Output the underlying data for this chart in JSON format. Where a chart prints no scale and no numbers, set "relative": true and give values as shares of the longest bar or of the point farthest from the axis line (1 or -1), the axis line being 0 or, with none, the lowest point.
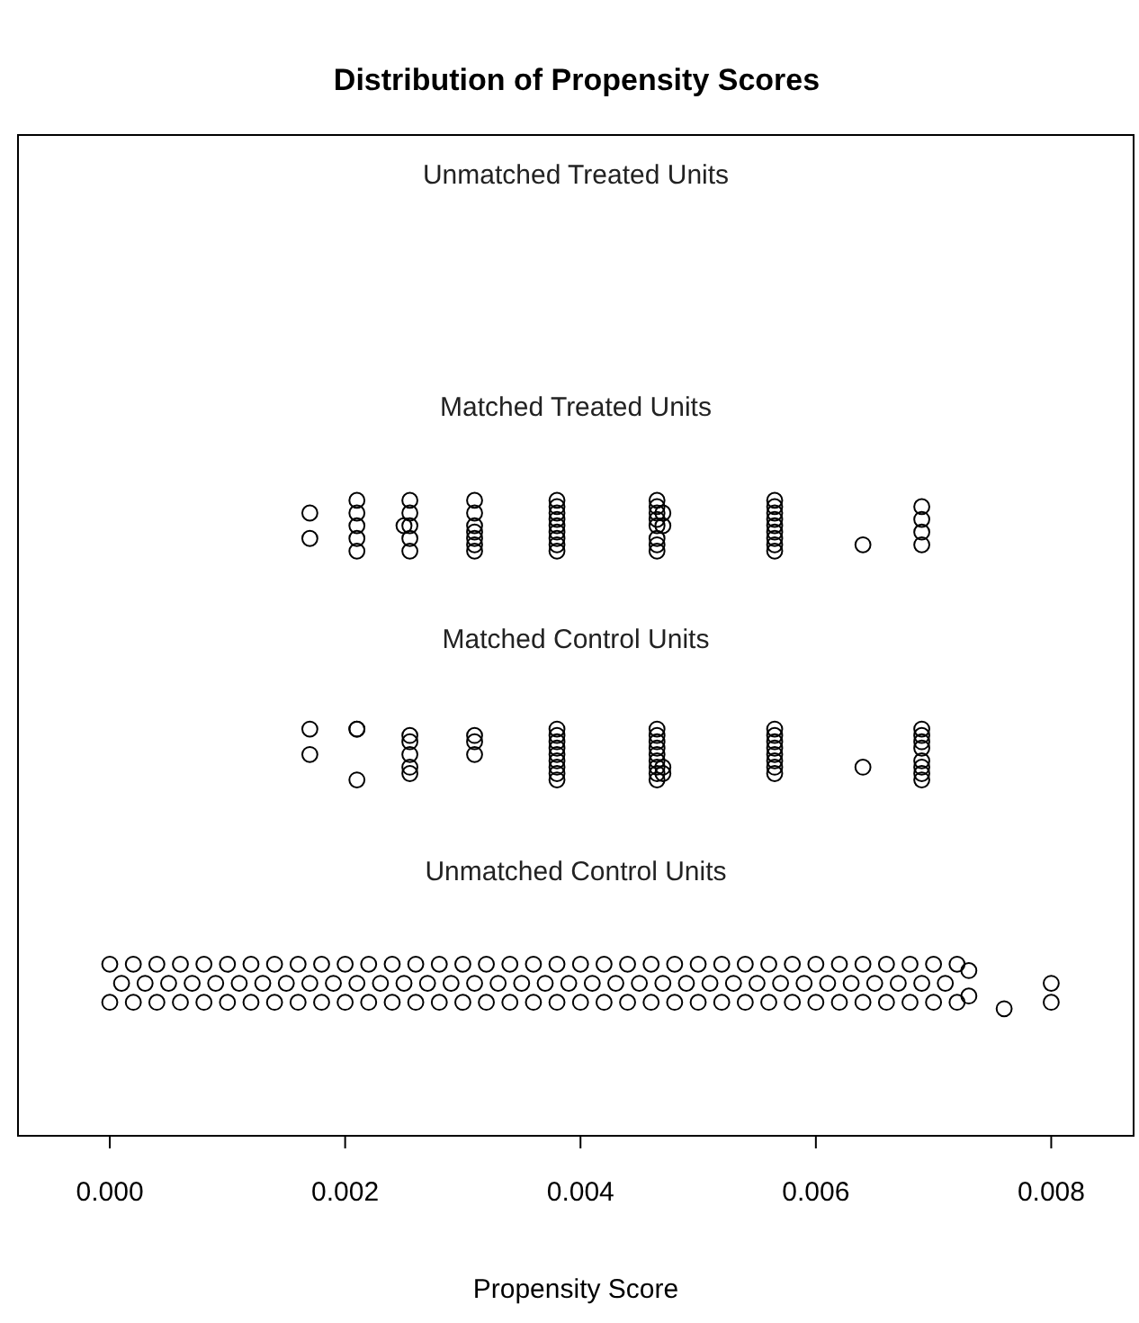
{
  "chart_data": {
    "type": "scatter",
    "title": "Distribution of Propensity Scores",
    "xlabel": "Propensity Score",
    "relative": true,
    "marker": "circle",
    "xlim": [
      -0.00078,
      0.0087
    ],
    "xticks": [
      {
        "value": 0,
        "label": "0.000"
      },
      {
        "value": 0.002,
        "label": "0.002"
      },
      {
        "value": 0.004,
        "label": "0.004"
      },
      {
        "value": 0.006,
        "label": "0.006"
      },
      {
        "value": 0.008,
        "label": "0.008"
      }
    ],
    "annotations": [
      "Unmatched Treated Units",
      "Matched Treated Units",
      "Matched Control Units",
      "Unmatched Control Units"
    ],
    "series": [
      {
        "color": "#000000",
        "x": [
          0.0017,
          0.0017,
          0.0021,
          0.0021,
          0.0021,
          0.0021,
          0.0021,
          0.00255,
          0.00255,
          0.00255,
          0.00255,
          0.00255,
          0.0025,
          0.0031,
          0.0031,
          0.0031,
          0.0031,
          0.0031,
          0.0031,
          0.0031,
          0.0038,
          0.0038,
          0.0038,
          0.0038,
          0.0038,
          0.0038,
          0.0038,
          0.0038,
          0.0038,
          0.00465,
          0.00465,
          0.00465,
          0.00465,
          0.00465,
          0.00465,
          0.00465,
          0.00465,
          0.0047,
          0.0047,
          0.00565,
          0.00565,
          0.00565,
          0.00565,
          0.00565,
          0.00565,
          0.00565,
          0.00565,
          0.00565,
          0.0064,
          0.0069,
          0.0069,
          0.0069,
          0.0069
        ],
        "values": [
          0.98,
          0.94,
          1.0,
          0.98,
          0.96,
          0.94,
          0.92,
          1.0,
          0.98,
          0.96,
          0.94,
          0.92,
          0.96,
          1.0,
          0.98,
          0.96,
          0.95,
          0.94,
          0.93,
          0.92,
          1.0,
          0.99,
          0.98,
          0.97,
          0.96,
          0.95,
          0.94,
          0.93,
          0.92,
          1.0,
          0.99,
          0.98,
          0.97,
          0.96,
          0.94,
          0.93,
          0.92,
          0.98,
          0.96,
          1.0,
          0.99,
          0.98,
          0.97,
          0.96,
          0.95,
          0.94,
          0.93,
          0.92,
          0.93,
          0.99,
          0.97,
          0.95,
          0.93
        ]
      },
      {
        "color": "#000000",
        "x": [
          0.0017,
          0.0017,
          0.0021,
          0.0021,
          0.0021,
          0.00255,
          0.00255,
          0.00255,
          0.00255,
          0.00255,
          0.0031,
          0.0031,
          0.0031,
          0.0038,
          0.0038,
          0.0038,
          0.0038,
          0.0038,
          0.0038,
          0.0038,
          0.0038,
          0.0038,
          0.00465,
          0.00465,
          0.00465,
          0.00465,
          0.00465,
          0.00465,
          0.00465,
          0.00465,
          0.00465,
          0.0047,
          0.0047,
          0.00565,
          0.00565,
          0.00565,
          0.00565,
          0.00565,
          0.00565,
          0.00565,
          0.00565,
          0.0064,
          0.0069,
          0.0069,
          0.0069,
          0.0069,
          0.0069,
          0.0069,
          0.0069,
          0.0069
        ],
        "values": [
          0.64,
          0.6,
          0.64,
          0.64,
          0.56,
          0.63,
          0.62,
          0.6,
          0.58,
          0.57,
          0.63,
          0.62,
          0.6,
          0.64,
          0.63,
          0.62,
          0.61,
          0.6,
          0.59,
          0.58,
          0.57,
          0.56,
          0.64,
          0.63,
          0.62,
          0.61,
          0.6,
          0.59,
          0.58,
          0.57,
          0.56,
          0.58,
          0.57,
          0.64,
          0.63,
          0.62,
          0.61,
          0.6,
          0.59,
          0.58,
          0.57,
          0.58,
          0.64,
          0.63,
          0.62,
          0.61,
          0.59,
          0.58,
          0.57,
          0.56
        ]
      },
      {
        "color": "#000000",
        "x": [
          0,
          0.0002,
          0.0004,
          0.0006,
          0.0008,
          0.001,
          0.0012,
          0.0014,
          0.0016,
          0.0018,
          0.002,
          0.0022,
          0.0024,
          0.0026,
          0.0028,
          0.003,
          0.0032,
          0.0034,
          0.0036,
          0.0038,
          0.004,
          0.0042,
          0.0044,
          0.0046,
          0.0048,
          0.005,
          0.0052,
          0.0054,
          0.0056,
          0.0058,
          0.006,
          0.0062,
          0.0064,
          0.0066,
          0.0068,
          0.007,
          0.0072,
          0.0001,
          0.0003,
          0.0005,
          0.0007,
          0.0009,
          0.0011,
          0.0013,
          0.0015,
          0.0017,
          0.0019,
          0.0021,
          0.0023,
          0.0025,
          0.0027,
          0.0029,
          0.0031,
          0.0033,
          0.0035,
          0.0037,
          0.0039,
          0.0041,
          0.0043,
          0.0045,
          0.0047,
          0.0049,
          0.0051,
          0.0053,
          0.0055,
          0.0057,
          0.0059,
          0.0061,
          0.0063,
          0.0065,
          0.0067,
          0.0069,
          0.0071,
          0,
          0.0002,
          0.0004,
          0.0006,
          0.0008,
          0.001,
          0.0012,
          0.0014,
          0.0016,
          0.0018,
          0.002,
          0.0022,
          0.0024,
          0.0026,
          0.0028,
          0.003,
          0.0032,
          0.0034,
          0.0036,
          0.0038,
          0.004,
          0.0042,
          0.0044,
          0.0046,
          0.0048,
          0.005,
          0.0052,
          0.0054,
          0.0056,
          0.0058,
          0.006,
          0.0062,
          0.0064,
          0.0066,
          0.0068,
          0.007,
          0.0072,
          0.0073,
          0.0073,
          0.0076,
          0.008,
          0.008
        ],
        "values": [
          0.21,
          0.21,
          0.21,
          0.21,
          0.21,
          0.21,
          0.21,
          0.21,
          0.21,
          0.21,
          0.21,
          0.21,
          0.21,
          0.21,
          0.21,
          0.21,
          0.21,
          0.21,
          0.21,
          0.21,
          0.21,
          0.21,
          0.21,
          0.21,
          0.21,
          0.21,
          0.21,
          0.21,
          0.21,
          0.21,
          0.21,
          0.21,
          0.21,
          0.21,
          0.21,
          0.21,
          0.21,
          0.24,
          0.24,
          0.24,
          0.24,
          0.24,
          0.24,
          0.24,
          0.24,
          0.24,
          0.24,
          0.24,
          0.24,
          0.24,
          0.24,
          0.24,
          0.24,
          0.24,
          0.24,
          0.24,
          0.24,
          0.24,
          0.24,
          0.24,
          0.24,
          0.24,
          0.24,
          0.24,
          0.24,
          0.24,
          0.24,
          0.24,
          0.24,
          0.24,
          0.24,
          0.24,
          0.24,
          0.27,
          0.27,
          0.27,
          0.27,
          0.27,
          0.27,
          0.27,
          0.27,
          0.27,
          0.27,
          0.27,
          0.27,
          0.27,
          0.27,
          0.27,
          0.27,
          0.27,
          0.27,
          0.27,
          0.27,
          0.27,
          0.27,
          0.27,
          0.27,
          0.27,
          0.27,
          0.27,
          0.27,
          0.27,
          0.27,
          0.27,
          0.27,
          0.27,
          0.27,
          0.27,
          0.27,
          0.27,
          0.22,
          0.26,
          0.2,
          0.21,
          0.24
        ]
      }
    ]
  }
}
